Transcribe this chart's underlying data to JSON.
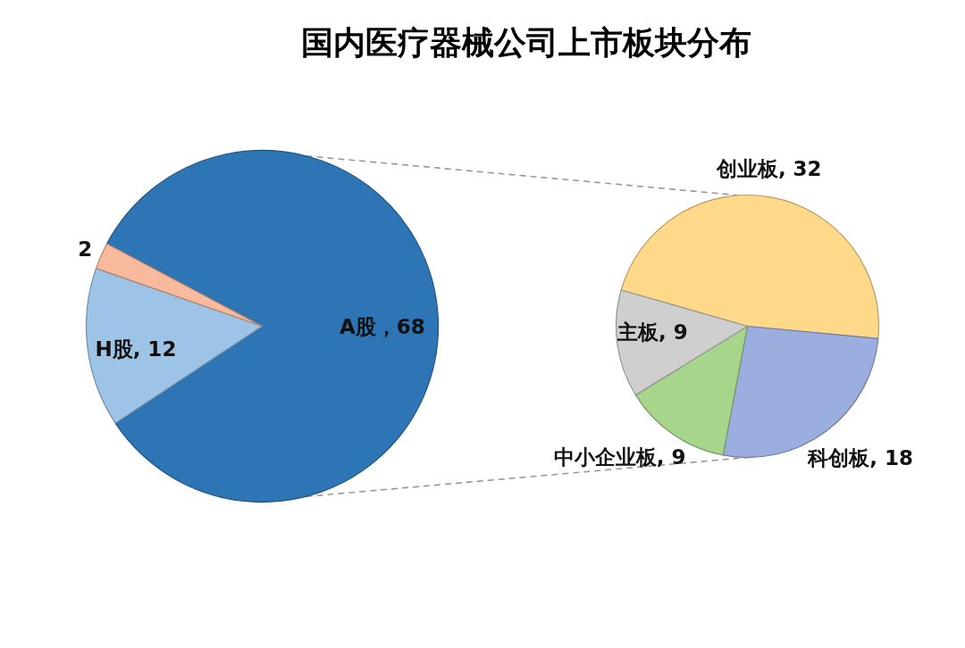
{
  "chart_data": [
    {
      "type": "pie",
      "title": "国内医疗器械公司上市板块分布",
      "categories": [
        "A股",
        "H股",
        null
      ],
      "values": [
        68,
        12,
        2
      ],
      "colors": [
        "#2e75b6",
        "#9dc3e6",
        "#f8b99c"
      ],
      "value_labels": [
        "，68",
        ", 12",
        "2"
      ]
    },
    {
      "type": "pie",
      "categories": [
        "创业板",
        "科创板",
        "中小企业板",
        "主板"
      ],
      "values": [
        32,
        18,
        9,
        9
      ],
      "colors": [
        "#ffd98a",
        "#9caee0",
        "#a8d58c",
        "#cfcfcf"
      ],
      "value_labels": [
        ", 32",
        ", 18",
        ", 9",
        ", 9"
      ]
    }
  ]
}
